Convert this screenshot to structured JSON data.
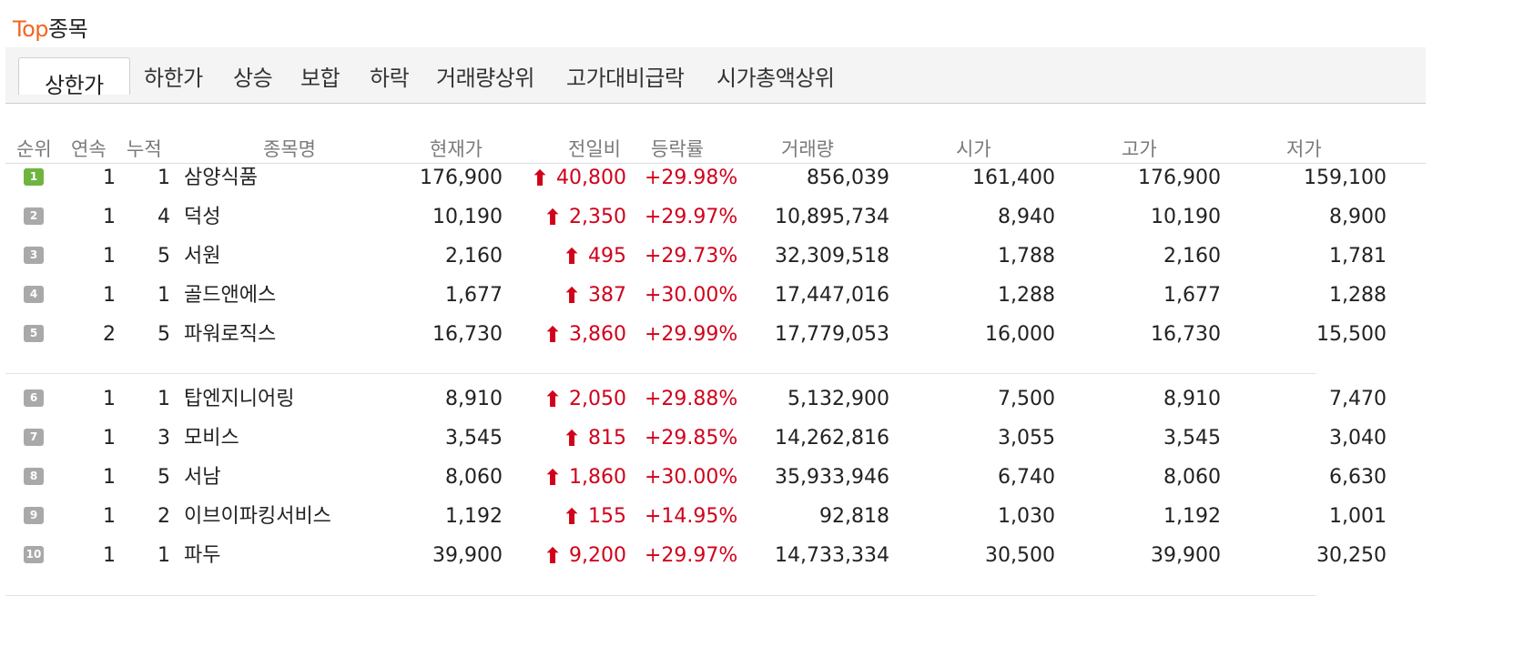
{
  "title": {
    "accent": "Top",
    "rest": "종목"
  },
  "tabs": [
    "상한가",
    "하한가",
    "상승",
    "보합",
    "하락",
    "거래량상위",
    "고가대비급락",
    "시가총액상위"
  ],
  "headers": {
    "rank": "순위",
    "streak": "연속",
    "cumulative": "누적",
    "name": "종목명",
    "price": "현재가",
    "change": "전일비",
    "rate": "등락률",
    "volume": "거래량",
    "open": "시가",
    "high": "고가",
    "low": "저가"
  },
  "rows": [
    {
      "rank": "1",
      "streak": "1",
      "cum": "1",
      "name": "삼양식품",
      "price": "176,900",
      "change": "40,800",
      "rate": "+29.98%",
      "volume": "856,039",
      "open": "161,400",
      "high": "176,900",
      "low": "159,100"
    },
    {
      "rank": "2",
      "streak": "1",
      "cum": "4",
      "name": "덕성",
      "price": "10,190",
      "change": "2,350",
      "rate": "+29.97%",
      "volume": "10,895,734",
      "open": "8,940",
      "high": "10,190",
      "low": "8,900"
    },
    {
      "rank": "3",
      "streak": "1",
      "cum": "5",
      "name": "서원",
      "price": "2,160",
      "change": "495",
      "rate": "+29.73%",
      "volume": "32,309,518",
      "open": "1,788",
      "high": "2,160",
      "low": "1,781"
    },
    {
      "rank": "4",
      "streak": "1",
      "cum": "1",
      "name": "골드앤에스",
      "price": "1,677",
      "change": "387",
      "rate": "+30.00%",
      "volume": "17,447,016",
      "open": "1,288",
      "high": "1,677",
      "low": "1,288"
    },
    {
      "rank": "5",
      "streak": "2",
      "cum": "5",
      "name": "파워로직스",
      "price": "16,730",
      "change": "3,860",
      "rate": "+29.99%",
      "volume": "17,779,053",
      "open": "16,000",
      "high": "16,730",
      "low": "15,500"
    },
    {
      "rank": "6",
      "streak": "1",
      "cum": "1",
      "name": "탑엔지니어링",
      "price": "8,910",
      "change": "2,050",
      "rate": "+29.88%",
      "volume": "5,132,900",
      "open": "7,500",
      "high": "8,910",
      "low": "7,470"
    },
    {
      "rank": "7",
      "streak": "1",
      "cum": "3",
      "name": "모비스",
      "price": "3,545",
      "change": "815",
      "rate": "+29.85%",
      "volume": "14,262,816",
      "open": "3,055",
      "high": "3,545",
      "low": "3,040"
    },
    {
      "rank": "8",
      "streak": "1",
      "cum": "5",
      "name": "서남",
      "price": "8,060",
      "change": "1,860",
      "rate": "+30.00%",
      "volume": "35,933,946",
      "open": "6,740",
      "high": "8,060",
      "low": "6,630"
    },
    {
      "rank": "9",
      "streak": "1",
      "cum": "2",
      "name": "이브이파킹서비스",
      "price": "1,192",
      "change": "155",
      "rate": "+14.95%",
      "volume": "92,818",
      "open": "1,030",
      "high": "1,192",
      "low": "1,001"
    },
    {
      "rank": "10",
      "streak": "1",
      "cum": "1",
      "name": "파두",
      "price": "39,900",
      "change": "9,200",
      "rate": "+29.97%",
      "volume": "14,733,334",
      "open": "30,500",
      "high": "39,900",
      "low": "30,250"
    }
  ]
}
